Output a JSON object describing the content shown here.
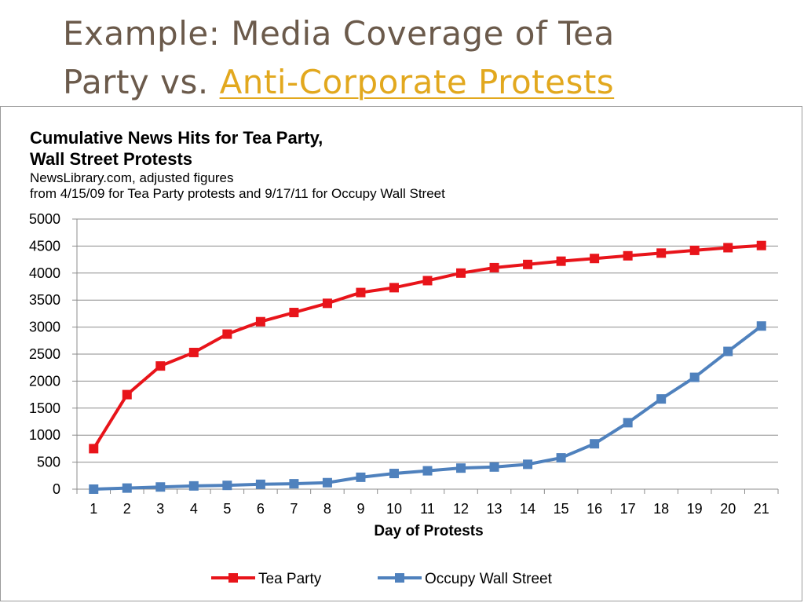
{
  "slide": {
    "title_line1": "Example: Media Coverage of Tea",
    "title_line2_prefix": "Party vs. ",
    "title_line2_link": "Anti-Corporate Protests"
  },
  "colors": {
    "title_text": "#6b5a4b",
    "link": "#e2a81e",
    "tea_party": "#e8141a",
    "occupy": "#4f81bd"
  },
  "chart_data": {
    "type": "line",
    "title": "Cumulative News Hits for Tea Party,",
    "title_line2": "Wall Street Protests",
    "subtitle_line1": "NewsLibrary.com, adjusted figures",
    "subtitle_line2": "from 4/15/09  for Tea Party protests and 9/17/11 for Occupy Wall Street",
    "xlabel": "Day of Protests",
    "ylabel": "",
    "ylim": [
      0,
      5000
    ],
    "yticks": [
      0,
      500,
      1000,
      1500,
      2000,
      2500,
      3000,
      3500,
      4000,
      4500,
      5000
    ],
    "categories": [
      "1",
      "2",
      "3",
      "4",
      "5",
      "6",
      "7",
      "8",
      "9",
      "10",
      "11",
      "12",
      "13",
      "14",
      "15",
      "16",
      "17",
      "18",
      "19",
      "20",
      "21"
    ],
    "grid": true,
    "legend_position": "bottom",
    "series": [
      {
        "name": "Tea Party",
        "color": "#e8141a",
        "marker": "square",
        "values": [
          750,
          1750,
          2280,
          2530,
          2870,
          3100,
          3270,
          3440,
          3640,
          3730,
          3860,
          4000,
          4100,
          4160,
          4220,
          4270,
          4320,
          4370,
          4420,
          4470,
          4510
        ]
      },
      {
        "name": "Occupy Wall Street",
        "color": "#4f81bd",
        "marker": "square",
        "values": [
          0,
          20,
          40,
          60,
          70,
          90,
          100,
          120,
          220,
          290,
          340,
          390,
          410,
          460,
          580,
          840,
          1230,
          1670,
          2070,
          2550,
          3020
        ]
      }
    ]
  }
}
